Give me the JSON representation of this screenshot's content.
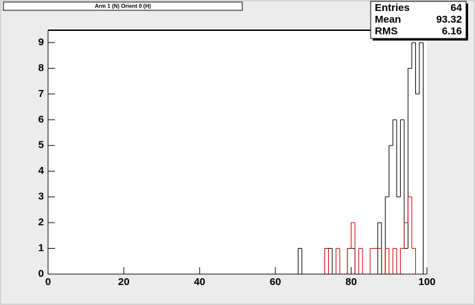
{
  "chart_data": {
    "type": "histogram",
    "title": "Arm 1 (N) Orient 0 (H)",
    "stats": [
      {
        "label": "Entries",
        "value": "64"
      },
      {
        "label": "Mean",
        "value": "93.32"
      },
      {
        "label": "RMS",
        "value": "6.16"
      }
    ],
    "bins": [
      0,
      1,
      2,
      3,
      4,
      5,
      6,
      7,
      8,
      9,
      10,
      11,
      12,
      13,
      14,
      15,
      16,
      17,
      18,
      19,
      20,
      21,
      22,
      23,
      24,
      25,
      26,
      27,
      28,
      29,
      30,
      31,
      32,
      33,
      34,
      35,
      36,
      37,
      38,
      39,
      40,
      41,
      42,
      43,
      44,
      45,
      46,
      47,
      48,
      49,
      50,
      51,
      52,
      53,
      54,
      55,
      56,
      57,
      58,
      59,
      60,
      61,
      62,
      63,
      64,
      65,
      66,
      67,
      68,
      69,
      70,
      71,
      72,
      73,
      74,
      75,
      76,
      77,
      78,
      79,
      80,
      81,
      82,
      83,
      84,
      85,
      86,
      87,
      88,
      89,
      90,
      91,
      92,
      93,
      94,
      95,
      96,
      97,
      98,
      99,
      100
    ],
    "series": [
      {
        "color": "#000000",
        "values": [
          0,
          0,
          0,
          0,
          0,
          0,
          0,
          0,
          0,
          0,
          0,
          0,
          0,
          0,
          0,
          0,
          0,
          0,
          0,
          0,
          0,
          0,
          0,
          0,
          0,
          0,
          0,
          0,
          0,
          0,
          0,
          0,
          0,
          0,
          0,
          0,
          0,
          0,
          0,
          0,
          0,
          0,
          0,
          0,
          0,
          0,
          0,
          0,
          0,
          0,
          0,
          0,
          0,
          0,
          0,
          0,
          0,
          0,
          0,
          0,
          0,
          0,
          0,
          0,
          0,
          0,
          1,
          0,
          0,
          0,
          0,
          0,
          0,
          1,
          1,
          0,
          0,
          0,
          0,
          1,
          1,
          0,
          0,
          0,
          0,
          0,
          0,
          2,
          0,
          3,
          5,
          6,
          3,
          6,
          1,
          8,
          9,
          7,
          9,
          0
        ]
      },
      {
        "color": "#cc0000",
        "values": [
          0,
          0,
          0,
          0,
          0,
          0,
          0,
          0,
          0,
          0,
          0,
          0,
          0,
          0,
          0,
          0,
          0,
          0,
          0,
          0,
          0,
          0,
          0,
          0,
          0,
          0,
          0,
          0,
          0,
          0,
          0,
          0,
          0,
          0,
          0,
          0,
          0,
          0,
          0,
          0,
          0,
          0,
          0,
          0,
          0,
          0,
          0,
          0,
          0,
          0,
          0,
          0,
          0,
          0,
          0,
          0,
          0,
          0,
          0,
          0,
          0,
          0,
          0,
          0,
          0,
          0,
          0,
          0,
          0,
          0,
          0,
          0,
          0,
          1,
          0,
          0,
          1,
          0,
          0,
          1,
          2,
          0,
          1,
          0,
          0,
          1,
          1,
          1,
          0,
          1,
          0,
          1,
          0,
          1,
          2,
          3,
          1,
          0,
          0,
          0
        ]
      }
    ],
    "xlim": [
      0,
      100
    ],
    "ylim": [
      0,
      9.48
    ],
    "xticks": [
      0,
      20,
      40,
      60,
      80,
      100
    ],
    "yticks": [
      0,
      1,
      2,
      3,
      4,
      5,
      6,
      7,
      8,
      9
    ]
  }
}
